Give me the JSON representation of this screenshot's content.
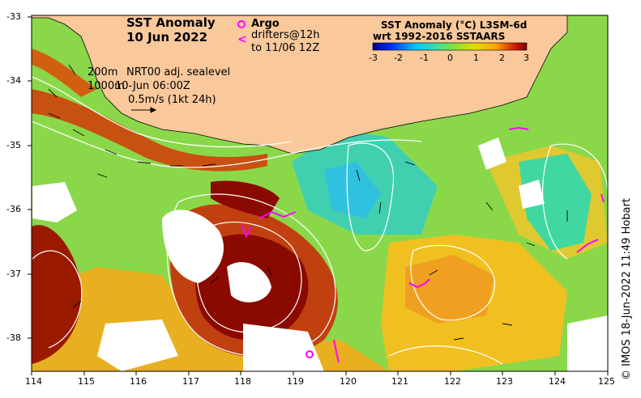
{
  "title_line1": "SST Anomaly",
  "title_line2": "10 Jun 2022",
  "legend_argo": "Argo",
  "legend_drifters_line1": "drifters@12h",
  "legend_drifters_line2": "to 11/06 12Z",
  "colorbar_title_line1": "SST Anomaly (°C) L3SM-6d",
  "colorbar_title_line2": "wrt 1992-2016 SSTAARS",
  "colorbar_ticks": [
    "-3",
    "-2",
    "-1",
    "0",
    "1",
    "2",
    "3"
  ],
  "contour_note": {
    "depth1": "200m",
    "depth2": "1000m",
    "product": "NRT00 adj. sealevel",
    "time": "10-Jun 06:00Z",
    "vector_scale": "0.5m/s (1kt 24h)"
  },
  "credit": "© IMOS 18-Jun-2022 11:49 Hobart",
  "axes": {
    "x_ticks": [
      "114",
      "115",
      "116",
      "117",
      "118",
      "119",
      "120",
      "121",
      "122",
      "123",
      "124",
      "125"
    ],
    "y_ticks": [
      "-33",
      "-34",
      "-35",
      "-36",
      "-37",
      "-38"
    ]
  },
  "colors": {
    "land": "#f9c89b",
    "accent_magenta": "#ff00ff",
    "colormap": [
      "#00007f",
      "#0040ff",
      "#00c0ff",
      "#40e0a0",
      "#80e040",
      "#e0e000",
      "#ffa000",
      "#e04000",
      "#800000"
    ]
  }
}
